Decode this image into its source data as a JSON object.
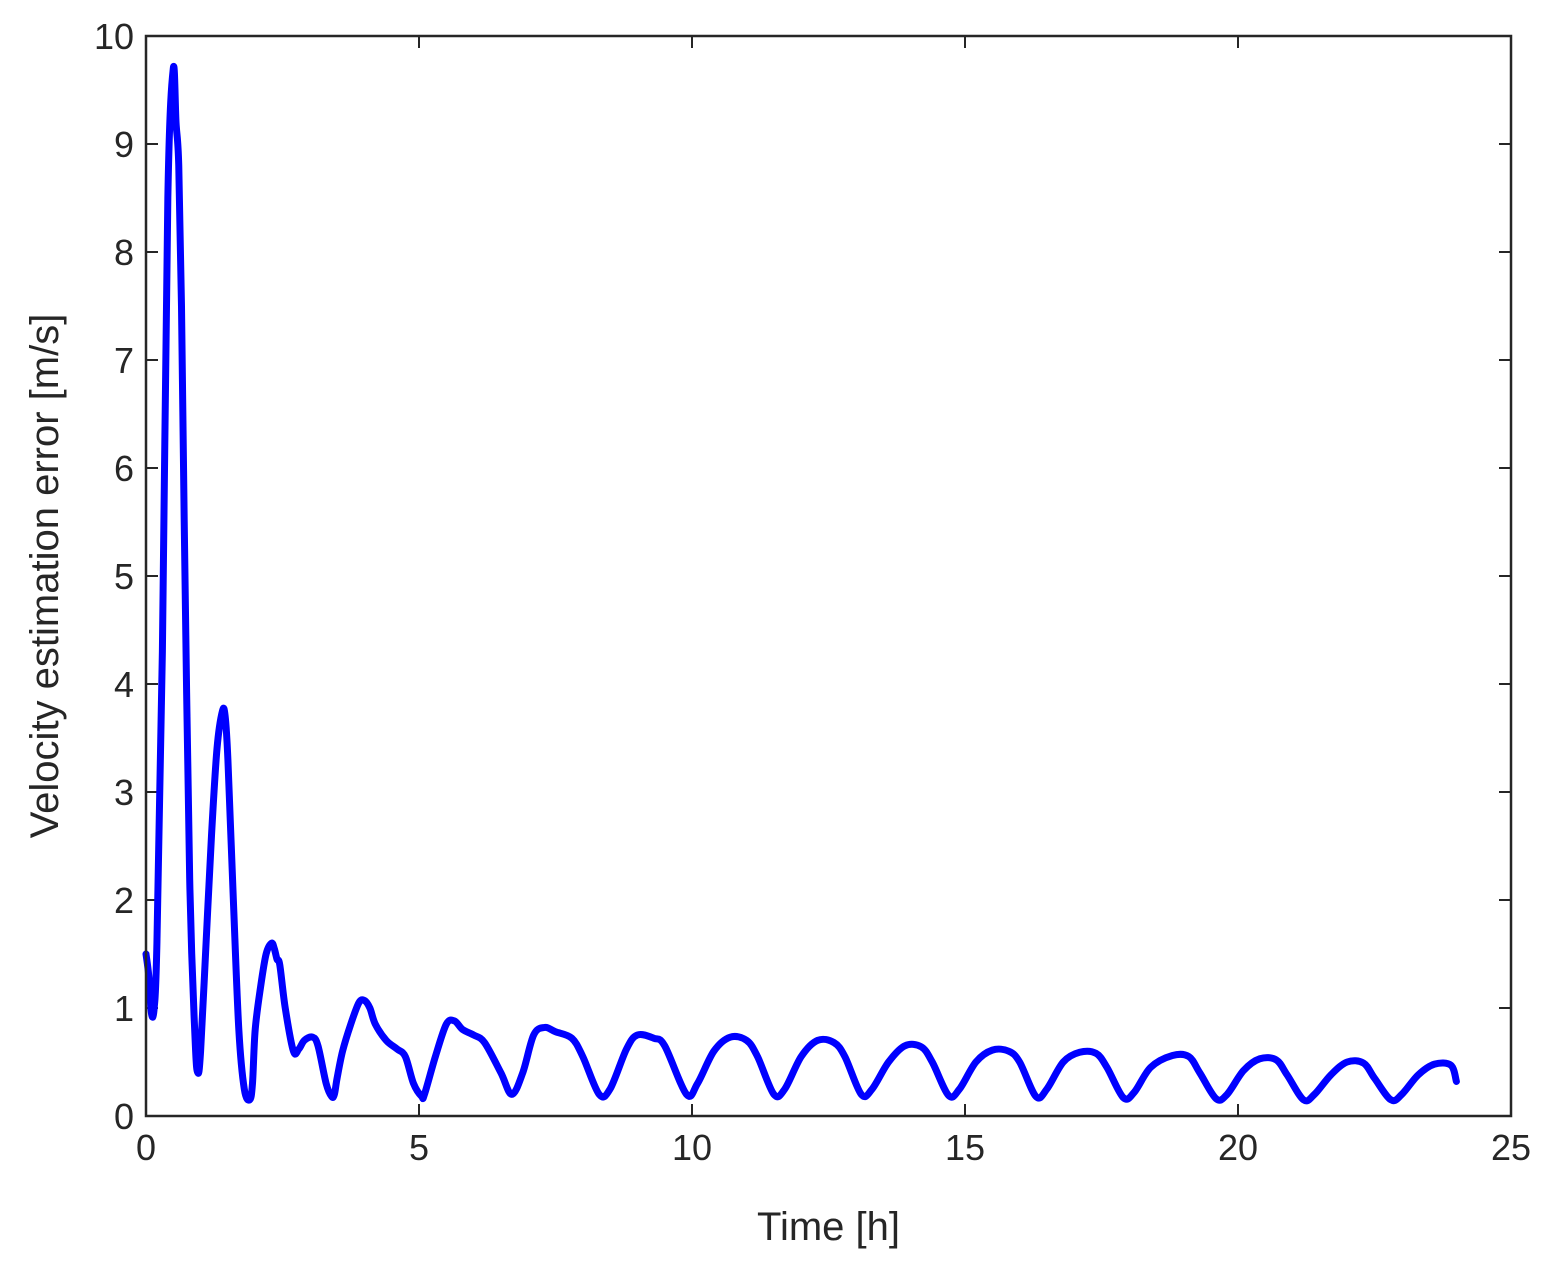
{
  "chart_data": {
    "type": "line",
    "title": "",
    "xlabel": "Time [h]",
    "ylabel": "Velocity estimation error [m/s]",
    "xlim": [
      0,
      25
    ],
    "ylim": [
      0,
      10
    ],
    "xticks": [
      0,
      5,
      10,
      15,
      20,
      25
    ],
    "yticks": [
      0,
      1,
      2,
      3,
      4,
      5,
      6,
      7,
      8,
      9,
      10
    ],
    "grid": false,
    "legend": "none",
    "series": [
      {
        "color": "#0000ff",
        "x": [
          0.0,
          0.05,
          0.1,
          0.15,
          0.2,
          0.3,
          0.4,
          0.5,
          0.55,
          0.6,
          0.65,
          0.7,
          0.8,
          0.9,
          0.95,
          1.0,
          1.1,
          1.2,
          1.3,
          1.4,
          1.45,
          1.5,
          1.6,
          1.7,
          1.8,
          1.9,
          1.95,
          2.0,
          2.1,
          2.2,
          2.3,
          2.35,
          2.4,
          2.45,
          2.55,
          2.7,
          2.8,
          2.9,
          3.05,
          3.15,
          3.3,
          3.4,
          3.45,
          3.5,
          3.6,
          3.75,
          3.9,
          4.0,
          4.1,
          4.2,
          4.4,
          4.6,
          4.75,
          4.9,
          5.05,
          5.1,
          5.3,
          5.5,
          5.65,
          5.8,
          6.0,
          6.2,
          6.5,
          6.7,
          6.9,
          7.1,
          7.3,
          7.5,
          7.8,
          8.0,
          8.3,
          8.5,
          8.8,
          9.0,
          9.3,
          9.5,
          9.9,
          10.1,
          10.4,
          10.7,
          11.0,
          11.2,
          11.5,
          11.7,
          12.0,
          12.3,
          12.6,
          12.8,
          13.1,
          13.3,
          13.6,
          13.9,
          14.2,
          14.4,
          14.7,
          14.9,
          15.2,
          15.5,
          15.8,
          16.0,
          16.3,
          16.5,
          16.8,
          17.1,
          17.4,
          17.6,
          17.9,
          18.1,
          18.4,
          18.8,
          19.1,
          19.3,
          19.6,
          19.8,
          20.1,
          20.4,
          20.7,
          20.9,
          21.2,
          21.4,
          21.7,
          22.0,
          22.3,
          22.5,
          22.8,
          23.0,
          23.3,
          23.6,
          23.9,
          24.0
        ],
        "y": [
          1.5,
          1.3,
          0.95,
          1.0,
          1.6,
          4.3,
          8.5,
          9.7,
          9.2,
          8.8,
          7.5,
          5.5,
          2.2,
          0.7,
          0.4,
          0.6,
          1.6,
          2.6,
          3.4,
          3.75,
          3.7,
          3.3,
          2.0,
          0.8,
          0.25,
          0.15,
          0.3,
          0.8,
          1.2,
          1.5,
          1.6,
          1.55,
          1.45,
          1.4,
          1.0,
          0.6,
          0.62,
          0.7,
          0.73,
          0.65,
          0.3,
          0.18,
          0.2,
          0.35,
          0.6,
          0.85,
          1.05,
          1.07,
          1.0,
          0.85,
          0.7,
          0.62,
          0.55,
          0.3,
          0.18,
          0.2,
          0.55,
          0.85,
          0.88,
          0.8,
          0.75,
          0.68,
          0.4,
          0.2,
          0.4,
          0.75,
          0.82,
          0.78,
          0.72,
          0.55,
          0.2,
          0.25,
          0.62,
          0.75,
          0.72,
          0.65,
          0.2,
          0.3,
          0.6,
          0.73,
          0.7,
          0.55,
          0.2,
          0.25,
          0.55,
          0.7,
          0.68,
          0.55,
          0.2,
          0.25,
          0.5,
          0.65,
          0.64,
          0.5,
          0.19,
          0.25,
          0.5,
          0.61,
          0.6,
          0.5,
          0.18,
          0.25,
          0.5,
          0.59,
          0.58,
          0.45,
          0.17,
          0.22,
          0.45,
          0.56,
          0.55,
          0.4,
          0.16,
          0.2,
          0.42,
          0.53,
          0.52,
          0.38,
          0.15,
          0.2,
          0.38,
          0.5,
          0.49,
          0.35,
          0.15,
          0.2,
          0.38,
          0.48,
          0.47,
          0.32
        ]
      }
    ]
  }
}
